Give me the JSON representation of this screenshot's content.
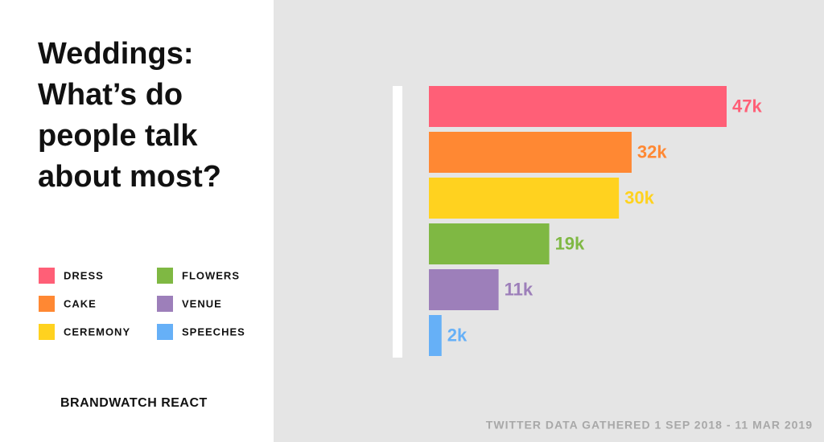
{
  "chart_data": {
    "type": "bar",
    "orientation": "horizontal",
    "title": "Weddings: What’s do people talk about most?",
    "categories": [
      "DRESS",
      "CAKE",
      "CEREMONY",
      "FLOWERS",
      "VENUE",
      "SPEECHES"
    ],
    "values": [
      47000,
      32000,
      30000,
      19000,
      11000,
      2000
    ],
    "value_labels": [
      "47k",
      "32k",
      "30k",
      "19k",
      "11k",
      "2k"
    ],
    "colors": [
      "#ff5f77",
      "#ff8833",
      "#ffd21f",
      "#7fb843",
      "#9d7fba",
      "#66b0f7"
    ],
    "legend": true,
    "brand": "BRANDWATCH REACT",
    "note": "TWITTER DATA GATHERED 1 SEP 2018 - 11 MAR 2019"
  }
}
